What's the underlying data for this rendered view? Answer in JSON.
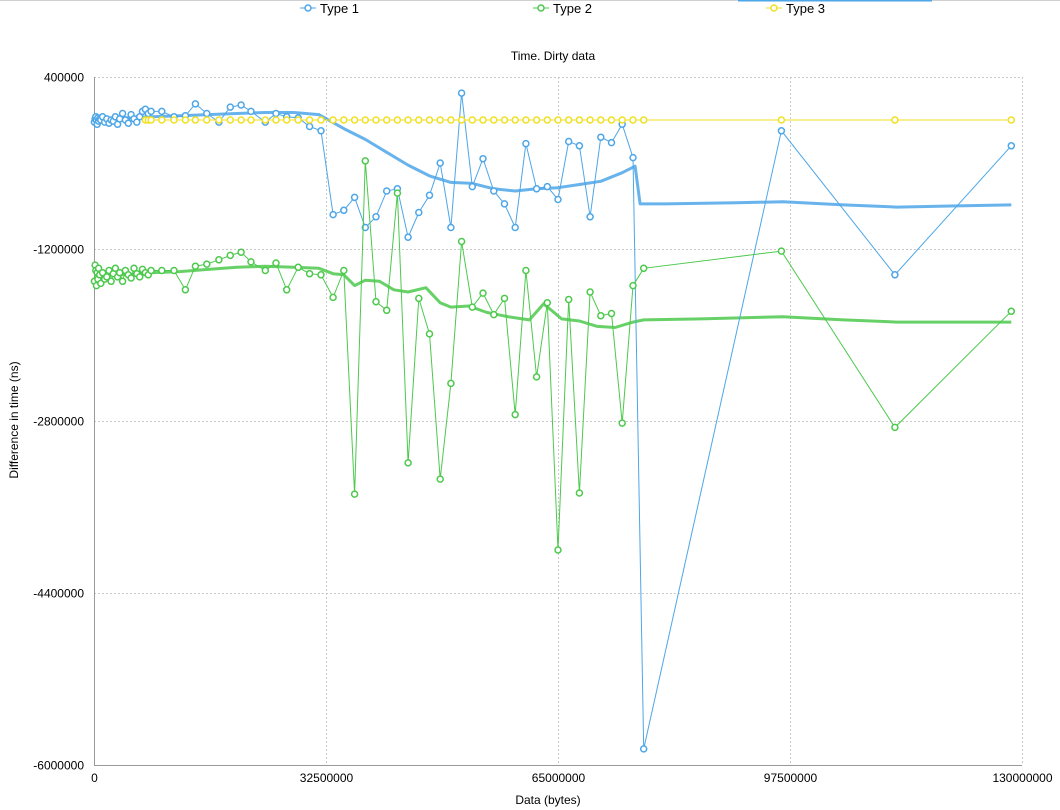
{
  "chart_data": {
    "type": "line",
    "title": "Time. Dirty data",
    "xlabel": "Data (bytes)",
    "ylabel": "Difference in time (ns)",
    "xlim": [
      0,
      130000000
    ],
    "ylim": [
      -6000000,
      400000
    ],
    "xticks": [
      0,
      32500000,
      65000000,
      97500000,
      130000000
    ],
    "xtick_labels": [
      "0",
      "32500000",
      "65000000",
      "97500000",
      "130000000"
    ],
    "yticks": [
      400000,
      -1200000,
      -2800000,
      -4400000,
      -6000000
    ],
    "ytick_labels": [
      "400000",
      "-1200000",
      "-2800000",
      "-4400000",
      "-6000000"
    ],
    "grid": true,
    "legend": "top",
    "series": [
      {
        "name": "Type 1",
        "color": "#4da6e8",
        "points": [
          [
            50000,
            -20000
          ],
          [
            150000,
            10000
          ],
          [
            250000,
            30000
          ],
          [
            350000,
            0
          ],
          [
            450000,
            -40000
          ],
          [
            550000,
            20000
          ],
          [
            650000,
            -10000
          ],
          [
            800000,
            10000
          ],
          [
            950000,
            0
          ],
          [
            1200000,
            30000
          ],
          [
            1500000,
            -20000
          ],
          [
            1800000,
            10000
          ],
          [
            2100000,
            -30000
          ],
          [
            2400000,
            0
          ],
          [
            2700000,
            -10000
          ],
          [
            3000000,
            30000
          ],
          [
            3300000,
            -40000
          ],
          [
            3600000,
            10000
          ],
          [
            4000000,
            60000
          ],
          [
            4400000,
            0
          ],
          [
            4800000,
            -30000
          ],
          [
            5200000,
            50000
          ],
          [
            5600000,
            10000
          ],
          [
            6000000,
            -20000
          ],
          [
            6400000,
            30000
          ],
          [
            6800000,
            80000
          ],
          [
            7200000,
            100000
          ],
          [
            7600000,
            60000
          ],
          [
            8000000,
            80000
          ],
          [
            9500000,
            80000
          ],
          [
            11200000,
            30000
          ],
          [
            12800000,
            40000
          ],
          [
            14200000,
            150000
          ],
          [
            15800000,
            60000
          ],
          [
            17500000,
            -20000
          ],
          [
            19100000,
            120000
          ],
          [
            20600000,
            140000
          ],
          [
            22000000,
            80000
          ],
          [
            24000000,
            -20000
          ],
          [
            25500000,
            60000
          ],
          [
            27000000,
            30000
          ],
          [
            28600000,
            20000
          ],
          [
            30200000,
            -60000
          ],
          [
            31800000,
            -100000
          ],
          [
            33500000,
            -880000
          ],
          [
            35000000,
            -840000
          ],
          [
            36500000,
            -720000
          ],
          [
            38000000,
            -1000000
          ],
          [
            39500000,
            -900000
          ],
          [
            41000000,
            -660000
          ],
          [
            42500000,
            -640000
          ],
          [
            44000000,
            -1090000
          ],
          [
            45500000,
            -860000
          ],
          [
            47000000,
            -700000
          ],
          [
            48500000,
            -400000
          ],
          [
            50000000,
            -1000000
          ],
          [
            51500000,
            250000
          ],
          [
            53000000,
            -620000
          ],
          [
            54500000,
            -360000
          ],
          [
            56000000,
            -660000
          ],
          [
            57500000,
            -780000
          ],
          [
            59000000,
            -1000000
          ],
          [
            60500000,
            -220000
          ],
          [
            62000000,
            -640000
          ],
          [
            63500000,
            -620000
          ],
          [
            65000000,
            -740000
          ],
          [
            66500000,
            -200000
          ],
          [
            68000000,
            -240000
          ],
          [
            69500000,
            -900000
          ],
          [
            71000000,
            -160000
          ],
          [
            72500000,
            -210000
          ],
          [
            74000000,
            -40000
          ],
          [
            75500000,
            -350000
          ],
          [
            77000000,
            -5850000
          ],
          [
            96300000,
            -100000
          ],
          [
            112200000,
            -1440000
          ],
          [
            128500000,
            -240000
          ]
        ],
        "trend": [
          [
            0,
            0
          ],
          [
            4000000,
            20000
          ],
          [
            8000000,
            30000
          ],
          [
            12000000,
            40000
          ],
          [
            16000000,
            50000
          ],
          [
            20000000,
            60000
          ],
          [
            24000000,
            70000
          ],
          [
            28000000,
            70000
          ],
          [
            31500000,
            50000
          ],
          [
            35000000,
            -80000
          ],
          [
            38000000,
            -180000
          ],
          [
            41000000,
            -300000
          ],
          [
            44000000,
            -420000
          ],
          [
            47000000,
            -520000
          ],
          [
            50000000,
            -580000
          ],
          [
            53000000,
            -590000
          ],
          [
            56000000,
            -640000
          ],
          [
            59000000,
            -660000
          ],
          [
            62000000,
            -640000
          ],
          [
            65000000,
            -630000
          ],
          [
            68000000,
            -600000
          ],
          [
            71000000,
            -570000
          ],
          [
            74000000,
            -490000
          ],
          [
            75800000,
            -430000
          ],
          [
            76500000,
            -780000
          ],
          [
            80000000,
            -780000
          ],
          [
            90000000,
            -770000
          ],
          [
            96500000,
            -760000
          ],
          [
            105000000,
            -790000
          ],
          [
            112500000,
            -810000
          ],
          [
            120000000,
            -800000
          ],
          [
            128500000,
            -790000
          ]
        ]
      },
      {
        "name": "Type 2",
        "color": "#4cc94c",
        "points": [
          [
            50000,
            -1500000
          ],
          [
            150000,
            -1350000
          ],
          [
            250000,
            -1400000
          ],
          [
            350000,
            -1540000
          ],
          [
            450000,
            -1420000
          ],
          [
            550000,
            -1480000
          ],
          [
            650000,
            -1380000
          ],
          [
            800000,
            -1440000
          ],
          [
            950000,
            -1520000
          ],
          [
            1200000,
            -1420000
          ],
          [
            1500000,
            -1480000
          ],
          [
            1800000,
            -1460000
          ],
          [
            2100000,
            -1400000
          ],
          [
            2400000,
            -1500000
          ],
          [
            2700000,
            -1430000
          ],
          [
            3000000,
            -1380000
          ],
          [
            3300000,
            -1460000
          ],
          [
            3600000,
            -1420000
          ],
          [
            4000000,
            -1500000
          ],
          [
            4400000,
            -1400000
          ],
          [
            4800000,
            -1440000
          ],
          [
            5200000,
            -1470000
          ],
          [
            5600000,
            -1380000
          ],
          [
            6000000,
            -1430000
          ],
          [
            6400000,
            -1460000
          ],
          [
            6800000,
            -1390000
          ],
          [
            7200000,
            -1420000
          ],
          [
            7600000,
            -1440000
          ],
          [
            8000000,
            -1400000
          ],
          [
            9500000,
            -1400000
          ],
          [
            11200000,
            -1400000
          ],
          [
            12800000,
            -1580000
          ],
          [
            14200000,
            -1360000
          ],
          [
            15800000,
            -1340000
          ],
          [
            17500000,
            -1300000
          ],
          [
            19100000,
            -1260000
          ],
          [
            20600000,
            -1230000
          ],
          [
            22000000,
            -1320000
          ],
          [
            24000000,
            -1400000
          ],
          [
            25500000,
            -1330000
          ],
          [
            27000000,
            -1580000
          ],
          [
            28600000,
            -1370000
          ],
          [
            30200000,
            -1430000
          ],
          [
            31800000,
            -1440000
          ],
          [
            33500000,
            -1650000
          ],
          [
            35000000,
            -1400000
          ],
          [
            36500000,
            -3480000
          ],
          [
            38000000,
            -380000
          ],
          [
            39500000,
            -1690000
          ],
          [
            41000000,
            -1770000
          ],
          [
            42500000,
            -680000
          ],
          [
            44000000,
            -3190000
          ],
          [
            45500000,
            -1660000
          ],
          [
            47000000,
            -1990000
          ],
          [
            48500000,
            -3340000
          ],
          [
            50000000,
            -2450000
          ],
          [
            51500000,
            -1130000
          ],
          [
            53000000,
            -1740000
          ],
          [
            54500000,
            -1610000
          ],
          [
            56000000,
            -1810000
          ],
          [
            57500000,
            -1660000
          ],
          [
            59000000,
            -2740000
          ],
          [
            60500000,
            -1400000
          ],
          [
            62000000,
            -2390000
          ],
          [
            63500000,
            -1700000
          ],
          [
            65000000,
            -4000000
          ],
          [
            66500000,
            -1670000
          ],
          [
            68000000,
            -3470000
          ],
          [
            69500000,
            -1600000
          ],
          [
            71000000,
            -1820000
          ],
          [
            72500000,
            -1800000
          ],
          [
            74000000,
            -2820000
          ],
          [
            75500000,
            -1540000
          ],
          [
            77000000,
            -1380000
          ],
          [
            96300000,
            -1220000
          ],
          [
            112200000,
            -2860000
          ],
          [
            128500000,
            -1780000
          ]
        ],
        "trend": [
          [
            0,
            -1420000
          ],
          [
            4000000,
            -1440000
          ],
          [
            8000000,
            -1420000
          ],
          [
            12000000,
            -1410000
          ],
          [
            16000000,
            -1390000
          ],
          [
            20000000,
            -1370000
          ],
          [
            24000000,
            -1360000
          ],
          [
            28000000,
            -1370000
          ],
          [
            31500000,
            -1380000
          ],
          [
            33500000,
            -1430000
          ],
          [
            35000000,
            -1440000
          ],
          [
            36500000,
            -1540000
          ],
          [
            38000000,
            -1490000
          ],
          [
            40000000,
            -1500000
          ],
          [
            42000000,
            -1580000
          ],
          [
            44000000,
            -1600000
          ],
          [
            46500000,
            -1560000
          ],
          [
            48500000,
            -1700000
          ],
          [
            50000000,
            -1740000
          ],
          [
            52500000,
            -1730000
          ],
          [
            55000000,
            -1790000
          ],
          [
            58000000,
            -1830000
          ],
          [
            61000000,
            -1860000
          ],
          [
            63000000,
            -1710000
          ],
          [
            65500000,
            -1850000
          ],
          [
            68000000,
            -1870000
          ],
          [
            70500000,
            -1920000
          ],
          [
            73000000,
            -1930000
          ],
          [
            75500000,
            -1880000
          ],
          [
            77000000,
            -1860000
          ],
          [
            85000000,
            -1850000
          ],
          [
            96500000,
            -1830000
          ],
          [
            105000000,
            -1860000
          ],
          [
            112500000,
            -1880000
          ],
          [
            120000000,
            -1880000
          ],
          [
            128500000,
            -1880000
          ]
        ]
      },
      {
        "name": "Type 3",
        "color": "#f0e020",
        "points": [
          [
            7200000,
            0
          ],
          [
            7600000,
            0
          ],
          [
            8000000,
            0
          ],
          [
            9500000,
            0
          ],
          [
            11200000,
            0
          ],
          [
            12800000,
            0
          ],
          [
            14200000,
            0
          ],
          [
            15800000,
            0
          ],
          [
            17500000,
            0
          ],
          [
            19100000,
            0
          ],
          [
            20600000,
            0
          ],
          [
            22000000,
            0
          ],
          [
            24000000,
            0
          ],
          [
            25500000,
            0
          ],
          [
            27000000,
            0
          ],
          [
            28600000,
            0
          ],
          [
            30200000,
            0
          ],
          [
            31800000,
            0
          ],
          [
            33500000,
            0
          ],
          [
            35000000,
            0
          ],
          [
            36500000,
            0
          ],
          [
            38000000,
            0
          ],
          [
            39500000,
            0
          ],
          [
            41000000,
            0
          ],
          [
            42500000,
            0
          ],
          [
            44000000,
            0
          ],
          [
            45500000,
            0
          ],
          [
            47000000,
            0
          ],
          [
            48500000,
            0
          ],
          [
            50000000,
            0
          ],
          [
            51500000,
            0
          ],
          [
            53000000,
            0
          ],
          [
            54500000,
            0
          ],
          [
            56000000,
            0
          ],
          [
            57500000,
            0
          ],
          [
            59000000,
            0
          ],
          [
            60500000,
            0
          ],
          [
            62000000,
            0
          ],
          [
            63500000,
            0
          ],
          [
            65000000,
            0
          ],
          [
            66500000,
            0
          ],
          [
            68000000,
            0
          ],
          [
            69500000,
            0
          ],
          [
            71000000,
            0
          ],
          [
            72500000,
            0
          ],
          [
            74000000,
            0
          ],
          [
            75500000,
            0
          ],
          [
            77000000,
            0
          ],
          [
            96300000,
            0
          ],
          [
            112200000,
            0
          ],
          [
            128500000,
            0
          ]
        ]
      }
    ]
  }
}
